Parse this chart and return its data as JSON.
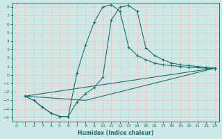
{
  "xlabel": "Humidex (Indice chaleur)",
  "xlim": [
    -0.5,
    23.5
  ],
  "ylim": [
    -5.5,
    8.5
  ],
  "xticks": [
    0,
    1,
    2,
    3,
    4,
    5,
    6,
    7,
    8,
    9,
    10,
    11,
    12,
    13,
    14,
    15,
    16,
    17,
    18,
    19,
    20,
    21,
    22,
    23
  ],
  "yticks": [
    -5,
    -4,
    -3,
    -2,
    -1,
    0,
    1,
    2,
    3,
    4,
    5,
    6,
    7,
    8
  ],
  "background_color": "#cde8e5",
  "grid_color": "#f0c8c8",
  "line_color": "#1a7070",
  "line1_x": [
    1,
    2,
    3,
    4,
    5,
    6,
    7,
    8,
    9,
    10,
    11,
    12,
    13,
    14,
    15,
    16,
    17,
    18,
    19,
    20,
    21,
    22,
    23
  ],
  "line1_y": [
    -2.5,
    -3.0,
    -3.8,
    -4.5,
    -4.9,
    -4.9,
    -3.2,
    -2.2,
    -1.5,
    -0.3,
    6.5,
    8.0,
    8.2,
    7.5,
    3.2,
    2.3,
    1.8,
    1.4,
    1.2,
    1.1,
    1.0,
    0.9,
    0.8
  ],
  "line2_x": [
    1,
    2,
    3,
    4,
    5,
    6,
    7,
    8,
    9,
    10,
    11,
    12,
    13,
    14,
    15,
    16,
    17,
    18,
    19,
    20,
    21,
    22,
    23
  ],
  "line2_y": [
    -2.5,
    -3.0,
    -3.8,
    -4.5,
    -4.9,
    -4.9,
    0.2,
    3.5,
    6.2,
    8.0,
    8.3,
    7.5,
    3.3,
    2.3,
    1.8,
    1.4,
    1.2,
    1.1,
    1.0,
    0.9,
    0.85,
    0.8,
    0.75
  ],
  "line3_x": [
    1,
    23
  ],
  "line3_y": [
    -2.5,
    0.8
  ],
  "line4_x": [
    1,
    8,
    23
  ],
  "line4_y": [
    -2.5,
    -3.0,
    0.8
  ]
}
